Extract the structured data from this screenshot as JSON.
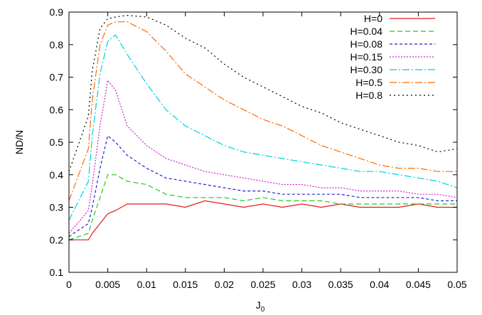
{
  "chart_data": {
    "type": "line",
    "xlabel": "J",
    "xlabel_sub": "0",
    "ylabel": "ND/N",
    "xlim": [
      0,
      0.05
    ],
    "ylim": [
      0.1,
      0.9
    ],
    "xticks": [
      "0",
      "0.005",
      "0.01",
      "0.015",
      "0.02",
      "0.025",
      "0.03",
      "0.035",
      "0.04",
      "0.045",
      "0.05"
    ],
    "yticks": [
      "0.1",
      "0.2",
      "0.3",
      "0.4",
      "0.5",
      "0.6",
      "0.7",
      "0.8",
      "0.9"
    ],
    "grid": false,
    "legend_position": "top-right",
    "x": [
      0,
      0.0025,
      0.003,
      0.004,
      0.005,
      0.006,
      0.0075,
      0.01,
      0.0125,
      0.015,
      0.0175,
      0.02,
      0.0225,
      0.025,
      0.0275,
      0.03,
      0.0325,
      0.035,
      0.0375,
      0.04,
      0.0425,
      0.045,
      0.0475,
      0.05
    ],
    "series": [
      {
        "name": "H=0",
        "color": "#e41a1c",
        "dash": "",
        "values": [
          0.2,
          0.2,
          0.22,
          0.25,
          0.28,
          0.29,
          0.31,
          0.31,
          0.31,
          0.3,
          0.32,
          0.31,
          0.3,
          0.31,
          0.3,
          0.31,
          0.3,
          0.31,
          0.3,
          0.3,
          0.3,
          0.31,
          0.3,
          0.3
        ]
      },
      {
        "name": "H=0.04",
        "color": "#1fcb1f",
        "dash": "7,4",
        "values": [
          0.2,
          0.22,
          0.26,
          0.33,
          0.4,
          0.4,
          0.38,
          0.37,
          0.34,
          0.33,
          0.33,
          0.33,
          0.32,
          0.33,
          0.32,
          0.32,
          0.32,
          0.31,
          0.31,
          0.31,
          0.31,
          0.31,
          0.31,
          0.31
        ]
      },
      {
        "name": "H=0.08",
        "color": "#2323d6",
        "dash": "4,3",
        "values": [
          0.21,
          0.25,
          0.3,
          0.42,
          0.52,
          0.5,
          0.46,
          0.42,
          0.39,
          0.38,
          0.37,
          0.36,
          0.35,
          0.35,
          0.34,
          0.34,
          0.34,
          0.34,
          0.33,
          0.33,
          0.33,
          0.33,
          0.32,
          0.32
        ]
      },
      {
        "name": "H=0.15",
        "color": "#d21ed2",
        "dash": "2,2",
        "values": [
          0.22,
          0.29,
          0.37,
          0.55,
          0.69,
          0.66,
          0.55,
          0.49,
          0.45,
          0.43,
          0.41,
          0.4,
          0.39,
          0.38,
          0.37,
          0.37,
          0.36,
          0.36,
          0.35,
          0.35,
          0.35,
          0.34,
          0.34,
          0.33
        ]
      },
      {
        "name": "H=0.30",
        "color": "#00cfe0",
        "dash": "10,3,2,3",
        "values": [
          0.26,
          0.38,
          0.52,
          0.71,
          0.81,
          0.83,
          0.77,
          0.68,
          0.6,
          0.55,
          0.52,
          0.49,
          0.47,
          0.46,
          0.45,
          0.44,
          0.43,
          0.42,
          0.41,
          0.41,
          0.4,
          0.39,
          0.38,
          0.36
        ]
      },
      {
        "name": "H=0.5",
        "color": "#ff6a00",
        "dash": "10,3,2,3",
        "values": [
          0.32,
          0.48,
          0.63,
          0.8,
          0.86,
          0.87,
          0.87,
          0.84,
          0.78,
          0.71,
          0.67,
          0.63,
          0.6,
          0.57,
          0.55,
          0.52,
          0.49,
          0.47,
          0.45,
          0.43,
          0.42,
          0.42,
          0.41,
          0.41
        ]
      },
      {
        "name": "H=0.8",
        "color": "#000000",
        "dash": "2,4",
        "values": [
          0.41,
          0.58,
          0.72,
          0.85,
          0.88,
          0.885,
          0.89,
          0.885,
          0.86,
          0.82,
          0.79,
          0.74,
          0.7,
          0.67,
          0.64,
          0.61,
          0.59,
          0.56,
          0.54,
          0.52,
          0.5,
          0.49,
          0.47,
          0.48
        ]
      }
    ]
  }
}
